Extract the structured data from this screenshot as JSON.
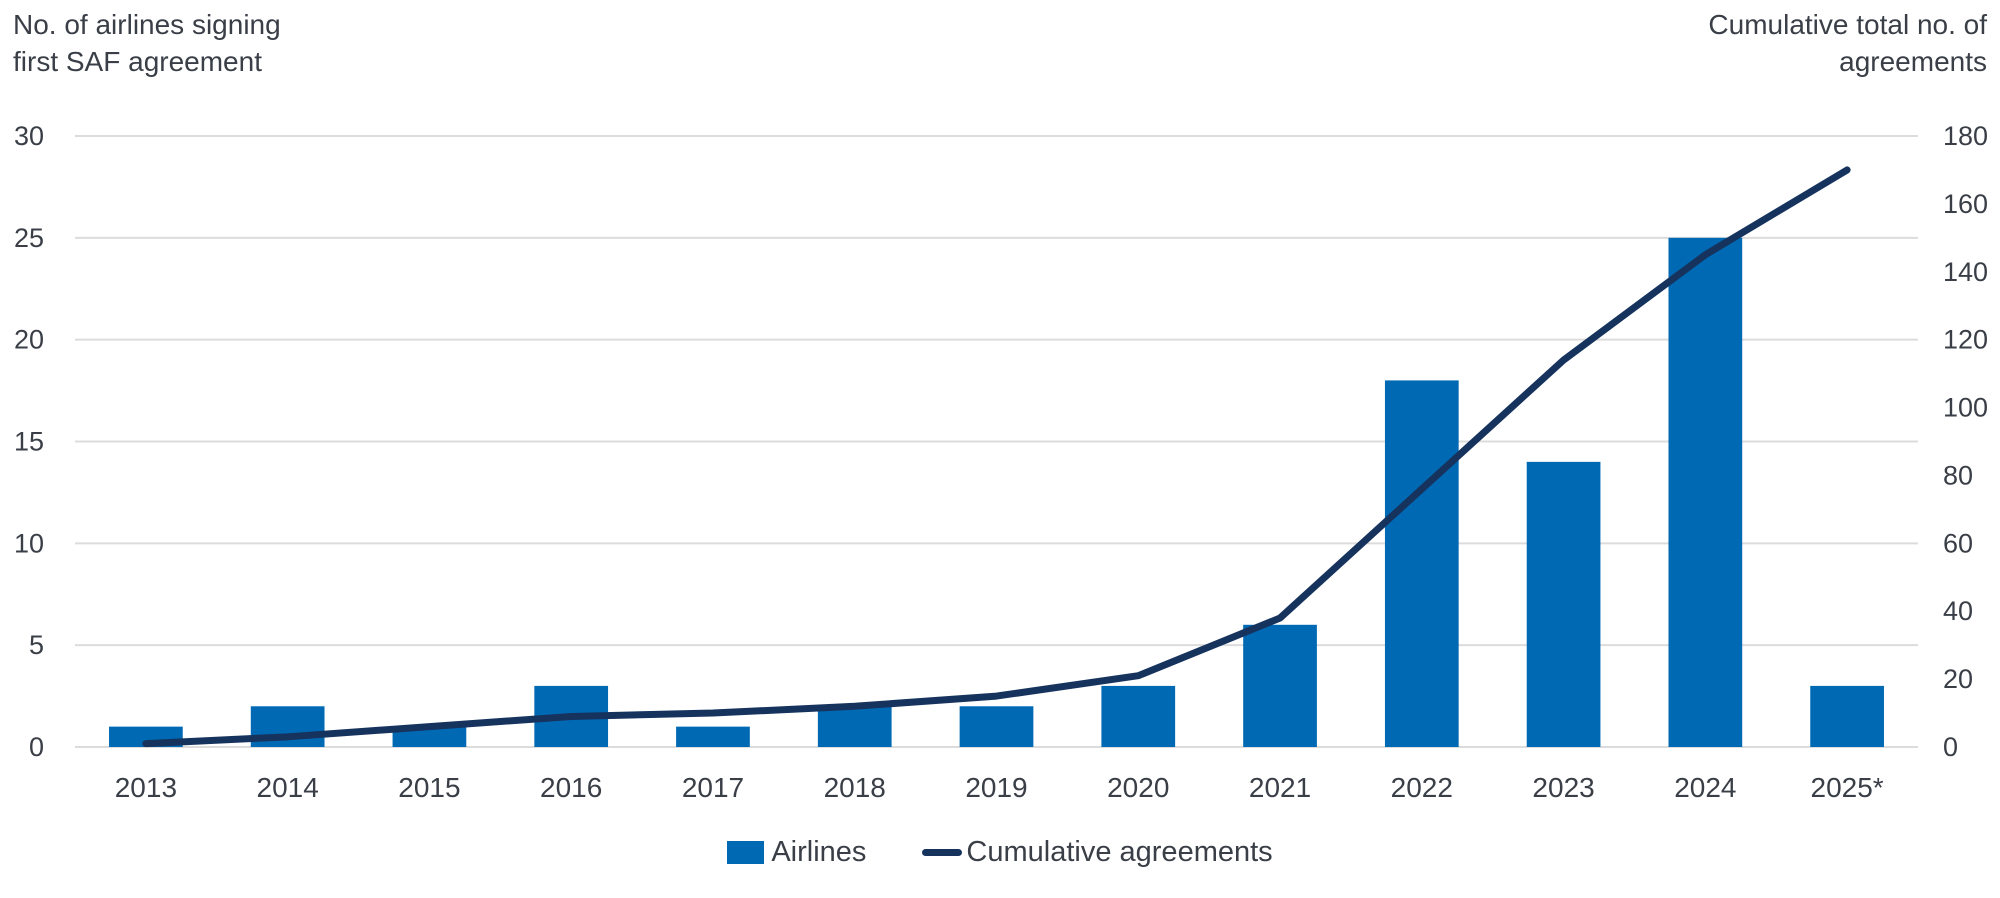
{
  "titles": {
    "left_axis_title": "No. of airlines signing\nfirst SAF agreement",
    "right_axis_title": "Cumulative total no. of\nagreements"
  },
  "legend": {
    "items": [
      {
        "label": "Airlines",
        "swatch": "bar-swatch-icon",
        "color": "#0069b4"
      },
      {
        "label": "Cumulative agreements",
        "swatch": "line-swatch-icon",
        "color": "#16335e"
      }
    ]
  },
  "chart_data": {
    "type": "bar",
    "subtype": "combo-bar-line-dual-axis",
    "categories": [
      "2013",
      "2014",
      "2015",
      "2016",
      "2017",
      "2018",
      "2019",
      "2020",
      "2021",
      "2022",
      "2023",
      "2024",
      "2025*"
    ],
    "series": [
      {
        "name": "Airlines",
        "type": "bar",
        "axis": "left",
        "color": "#0069b4",
        "values": [
          1,
          2,
          1,
          3,
          1,
          2,
          2,
          3,
          6,
          18,
          14,
          25,
          3
        ]
      },
      {
        "name": "Cumulative agreements",
        "type": "line",
        "axis": "right",
        "color": "#16335e",
        "values": [
          1,
          3,
          6,
          9,
          10,
          12,
          15,
          21,
          38,
          76,
          114,
          145,
          170
        ]
      }
    ],
    "left_axis": {
      "label": "No. of airlines signing first SAF agreement",
      "ticks": [
        0,
        5,
        10,
        15,
        20,
        25,
        30
      ],
      "range": [
        0,
        30
      ]
    },
    "right_axis": {
      "label": "Cumulative total no. of agreements",
      "ticks": [
        0,
        20,
        40,
        60,
        80,
        100,
        120,
        140,
        160,
        180
      ],
      "range": [
        0,
        180
      ]
    },
    "grid": {
      "horizontal": true,
      "vertical": false,
      "color": "#dcdcdc"
    },
    "legend_position": "bottom-center",
    "text_color": "#3a3f47"
  }
}
